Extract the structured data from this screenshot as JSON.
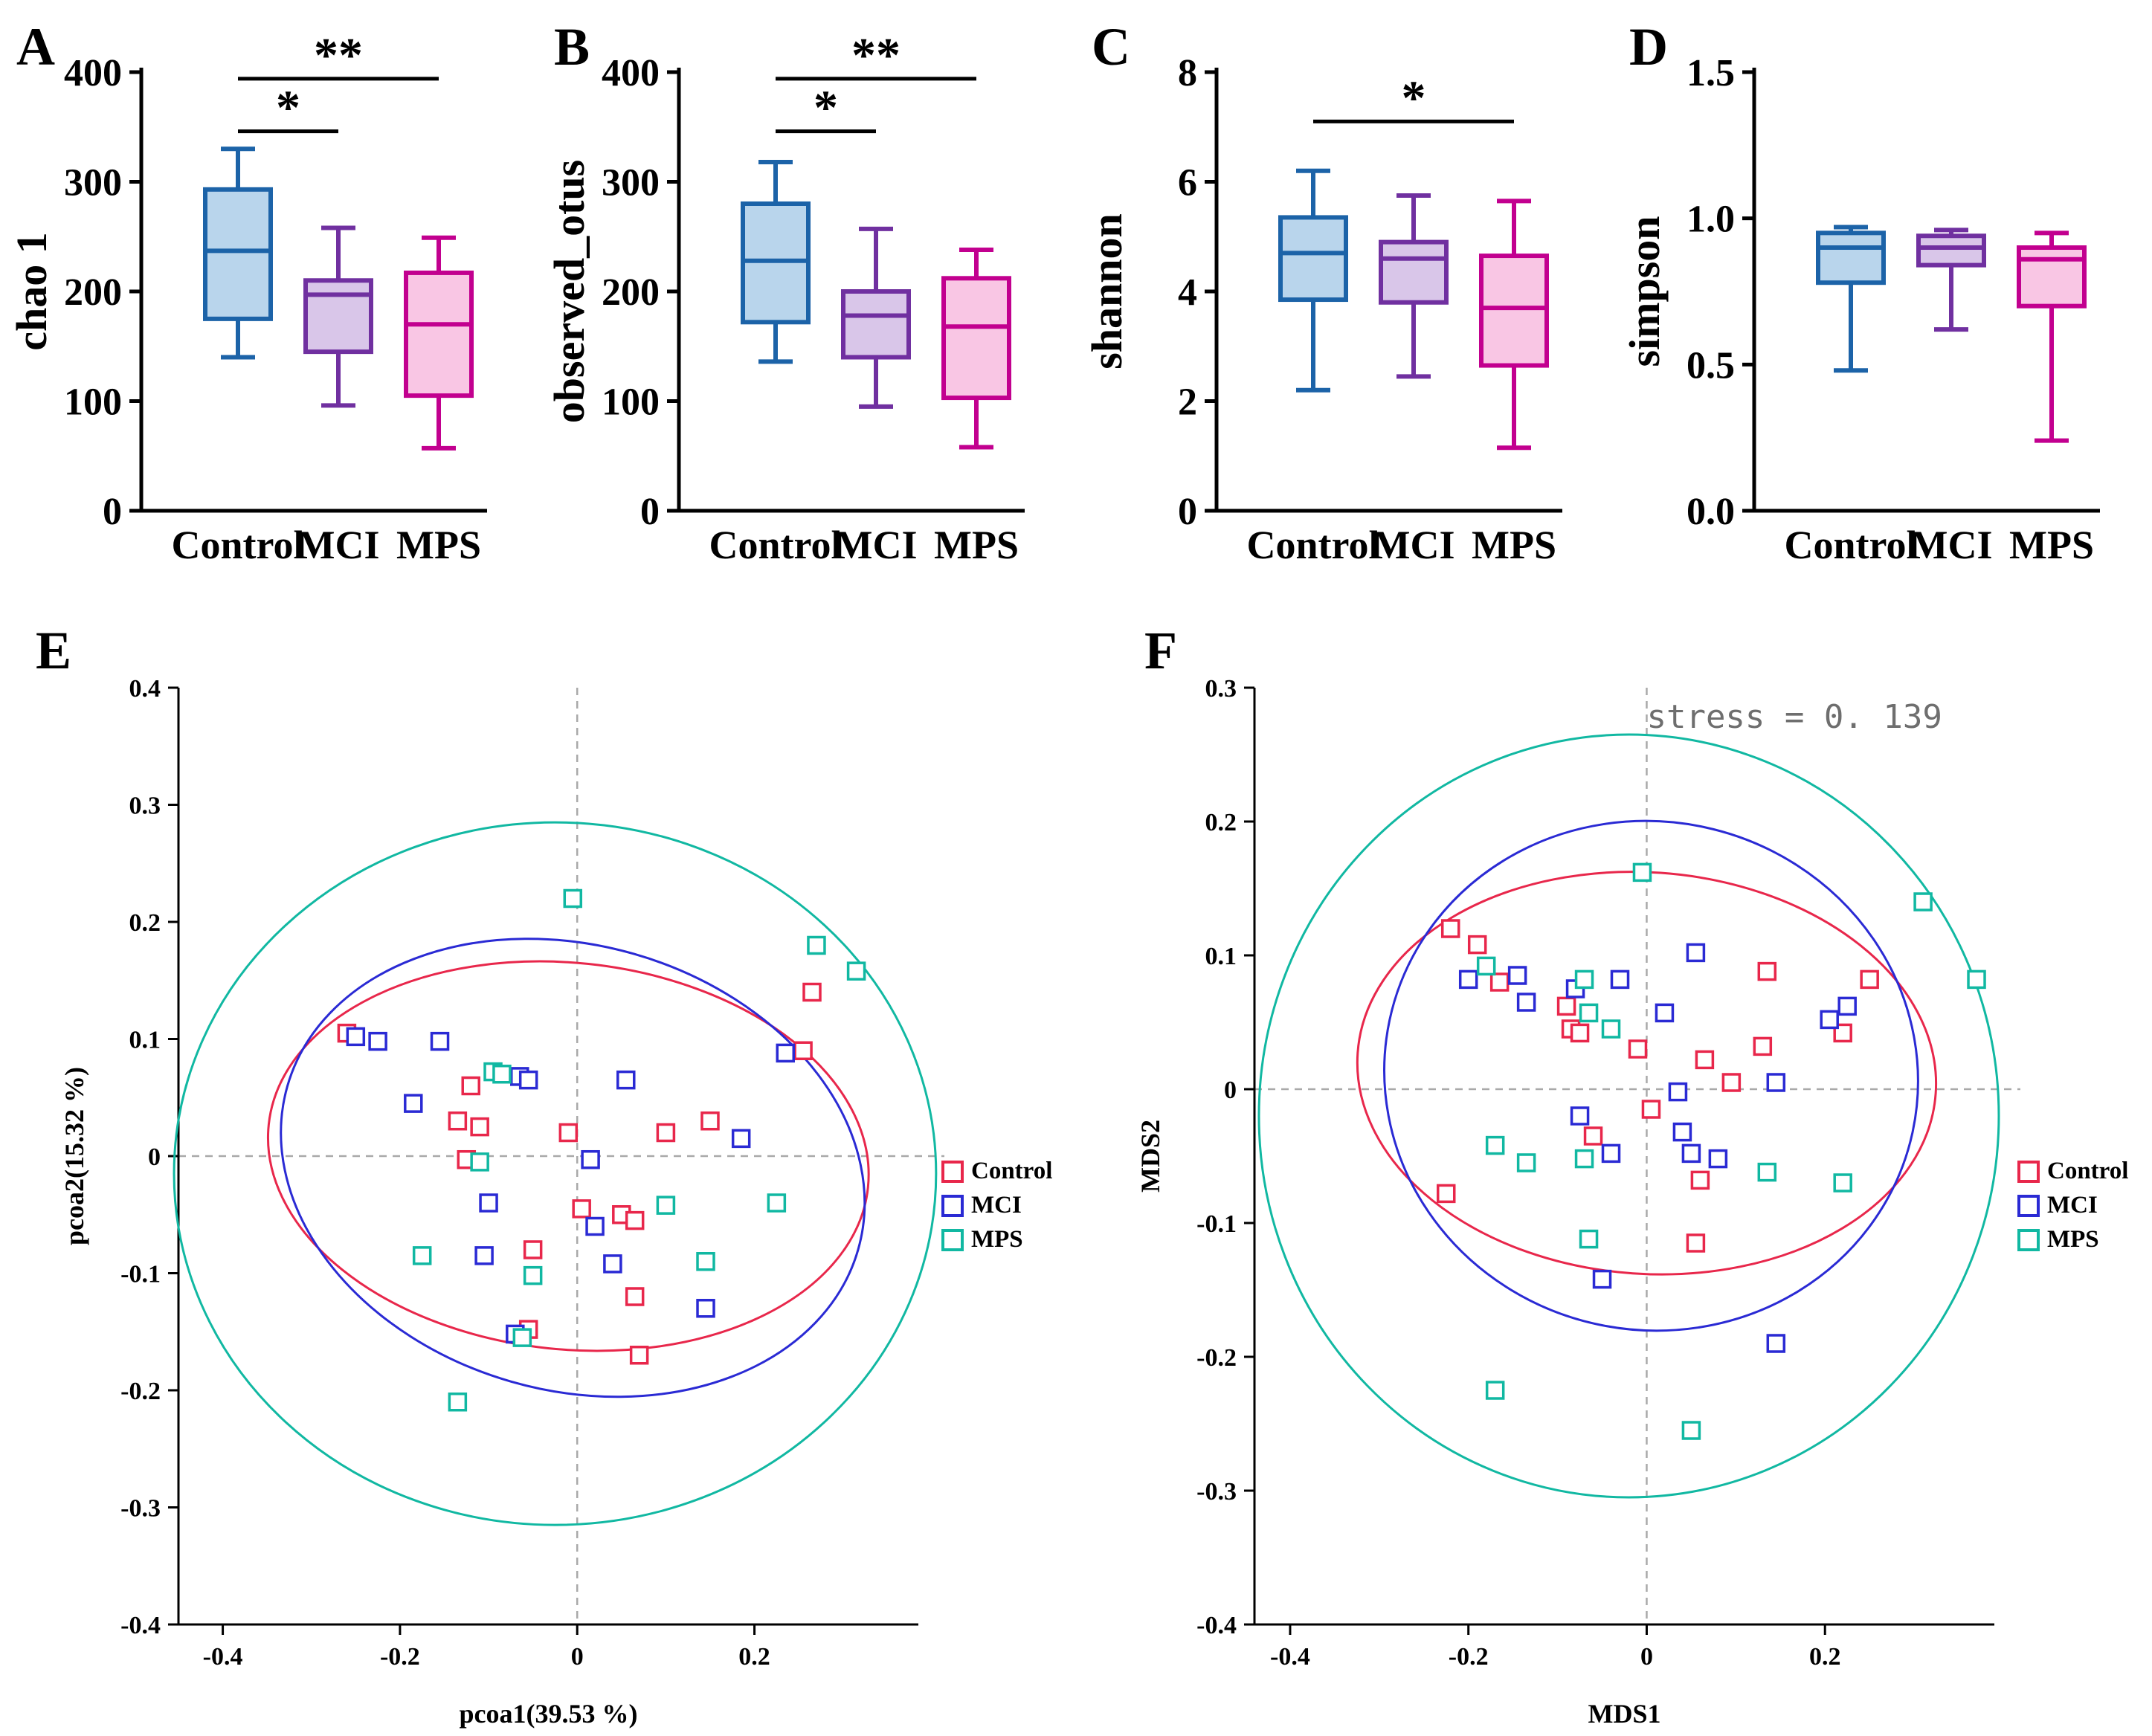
{
  "panels": [
    {
      "letter": "A"
    },
    {
      "letter": "B"
    },
    {
      "letter": "C"
    },
    {
      "letter": "D"
    },
    {
      "letter": "E"
    },
    {
      "letter": "F"
    }
  ],
  "colors": {
    "box_groups": [
      {
        "name": "Control",
        "stroke": "#1c63a8",
        "fill": "#b9d5ec"
      },
      {
        "name": "MCI",
        "stroke": "#7030a0",
        "fill": "#d9c6e9"
      },
      {
        "name": "MPS",
        "stroke": "#c2008f",
        "fill": "#f9c6e4"
      }
    ],
    "scatter_series": {
      "Control": "#e8274b",
      "MCI": "#2a2ad4",
      "MPS": "#11b8a2"
    }
  },
  "chart_data": [
    {
      "type": "box",
      "panel": "A",
      "ylabel": "chao 1",
      "ylim": [
        0,
        400
      ],
      "yticks": [
        "0",
        "100",
        "200",
        "300",
        "400"
      ],
      "categories": [
        "Control",
        "MCI",
        "MPS"
      ],
      "boxes": [
        {
          "group": "Control",
          "whisker_low": 140,
          "q1": 175,
          "median": 237,
          "q3": 293,
          "whisker_high": 330
        },
        {
          "group": "MCI",
          "whisker_low": 96,
          "q1": 145,
          "median": 197,
          "q3": 210,
          "whisker_high": 258
        },
        {
          "group": "MPS",
          "whisker_low": 57,
          "q1": 105,
          "median": 170,
          "q3": 217,
          "whisker_high": 249
        }
      ],
      "significance": [
        {
          "from": 0,
          "to": 1,
          "label": "*",
          "y": 346
        },
        {
          "from": 0,
          "to": 2,
          "label": "**",
          "y": 394
        }
      ]
    },
    {
      "type": "box",
      "panel": "B",
      "ylabel": "observed_otus",
      "ylim": [
        0,
        400
      ],
      "yticks": [
        "0",
        "100",
        "200",
        "300",
        "400"
      ],
      "categories": [
        "Control",
        "MCI",
        "MPS"
      ],
      "boxes": [
        {
          "group": "Control",
          "whisker_low": 136,
          "q1": 172,
          "median": 228,
          "q3": 280,
          "whisker_high": 318
        },
        {
          "group": "MCI",
          "whisker_low": 95,
          "q1": 140,
          "median": 178,
          "q3": 200,
          "whisker_high": 257
        },
        {
          "group": "MPS",
          "whisker_low": 58,
          "q1": 103,
          "median": 168,
          "q3": 212,
          "whisker_high": 238
        }
      ],
      "significance": [
        {
          "from": 0,
          "to": 1,
          "label": "*",
          "y": 346
        },
        {
          "from": 0,
          "to": 2,
          "label": "**",
          "y": 394
        }
      ]
    },
    {
      "type": "box",
      "panel": "C",
      "ylabel": "shannon",
      "ylim": [
        0,
        8
      ],
      "yticks": [
        "0",
        "2",
        "4",
        "6",
        "8"
      ],
      "categories": [
        "Control",
        "MCI",
        "MPS"
      ],
      "boxes": [
        {
          "group": "Control",
          "whisker_low": 2.2,
          "q1": 3.85,
          "median": 4.7,
          "q3": 5.35,
          "whisker_high": 6.2
        },
        {
          "group": "MCI",
          "whisker_low": 2.45,
          "q1": 3.8,
          "median": 4.6,
          "q3": 4.9,
          "whisker_high": 5.75
        },
        {
          "group": "MPS",
          "whisker_low": 1.15,
          "q1": 2.65,
          "median": 3.7,
          "q3": 4.65,
          "whisker_high": 5.65
        }
      ],
      "significance": [
        {
          "from": 0,
          "to": 2,
          "label": "*",
          "y": 7.1
        }
      ]
    },
    {
      "type": "box",
      "panel": "D",
      "ylabel": "simpson",
      "ylim": [
        0,
        1.5
      ],
      "yticks": [
        "0.0",
        "0.5",
        "1.0",
        "1.5"
      ],
      "categories": [
        "Control",
        "MCI",
        "MPS"
      ],
      "boxes": [
        {
          "group": "Control",
          "whisker_low": 0.48,
          "q1": 0.78,
          "median": 0.9,
          "q3": 0.95,
          "whisker_high": 0.97
        },
        {
          "group": "MCI",
          "whisker_low": 0.62,
          "q1": 0.84,
          "median": 0.9,
          "q3": 0.94,
          "whisker_high": 0.96
        },
        {
          "group": "MPS",
          "whisker_low": 0.24,
          "q1": 0.7,
          "median": 0.86,
          "q3": 0.9,
          "whisker_high": 0.95
        }
      ],
      "significance": []
    },
    {
      "type": "scatter",
      "panel": "E",
      "xlabel": "pcoa1(39.53 %)",
      "ylabel": "pcoa2(15.32 %)",
      "xlim": [
        -0.45,
        0.385
      ],
      "ylim": [
        -0.4,
        0.4
      ],
      "xticks": [
        "-0.4",
        "-0.2",
        "0",
        "0.2"
      ],
      "yticks": [
        "0.4",
        "0.3",
        "0.2",
        "0.1",
        "0",
        "-0.1",
        "-0.2",
        "-0.3",
        "-0.4"
      ],
      "legend_y": 755,
      "series": [
        {
          "name": "Control",
          "points": [
            [
              -0.26,
              0.105
            ],
            [
              -0.12,
              0.06
            ],
            [
              -0.135,
              0.03
            ],
            [
              -0.11,
              0.025
            ],
            [
              -0.125,
              -0.003
            ],
            [
              -0.01,
              0.02
            ],
            [
              0.005,
              -0.045
            ],
            [
              0.05,
              -0.05
            ],
            [
              0.065,
              -0.055
            ],
            [
              0.1,
              0.02
            ],
            [
              0.15,
              0.03
            ],
            [
              0.255,
              0.09
            ],
            [
              0.265,
              0.14
            ],
            [
              -0.05,
              -0.08
            ],
            [
              0.065,
              -0.12
            ],
            [
              0.07,
              -0.17
            ],
            [
              -0.055,
              -0.148
            ]
          ]
        },
        {
          "name": "MCI",
          "points": [
            [
              -0.25,
              0.102
            ],
            [
              -0.225,
              0.098
            ],
            [
              -0.155,
              0.098
            ],
            [
              -0.185,
              0.045
            ],
            [
              -0.065,
              0.068
            ],
            [
              -0.055,
              0.065
            ],
            [
              0.055,
              0.065
            ],
            [
              0.015,
              -0.003
            ],
            [
              -0.1,
              -0.04
            ],
            [
              -0.105,
              -0.085
            ],
            [
              0.04,
              -0.092
            ],
            [
              0.185,
              0.015
            ],
            [
              0.235,
              0.088
            ],
            [
              0.145,
              -0.13
            ],
            [
              -0.07,
              -0.152
            ],
            [
              0.02,
              -0.06
            ]
          ]
        },
        {
          "name": "MPS",
          "points": [
            [
              -0.005,
              0.22
            ],
            [
              0.27,
              0.18
            ],
            [
              0.315,
              0.158
            ],
            [
              -0.095,
              0.072
            ],
            [
              -0.11,
              -0.005
            ],
            [
              -0.175,
              -0.085
            ],
            [
              -0.05,
              -0.102
            ],
            [
              0.145,
              -0.09
            ],
            [
              0.225,
              -0.04
            ],
            [
              0.1,
              -0.042
            ],
            [
              -0.135,
              -0.21
            ],
            [
              -0.062,
              -0.155
            ],
            [
              -0.085,
              0.07
            ]
          ]
        }
      ],
      "ellipses": [
        {
          "series": "Control",
          "cx": -0.01,
          "cy": 0.0,
          "rx": 0.34,
          "ry": 0.165,
          "tilt": 6
        },
        {
          "series": "MCI",
          "cx": -0.005,
          "cy": -0.01,
          "rx": 0.335,
          "ry": 0.19,
          "tilt": 16
        },
        {
          "series": "MPS",
          "cx": -0.025,
          "cy": -0.015,
          "rx": 0.43,
          "ry": 0.3,
          "tilt": 0
        }
      ]
    },
    {
      "type": "scatter",
      "panel": "F",
      "xlabel": "MDS1",
      "ylabel": "MDS2",
      "xlim": [
        -0.44,
        0.39
      ],
      "ylim": [
        -0.4,
        0.3
      ],
      "xticks": [
        "-0.4",
        "-0.2",
        "0",
        "0.2"
      ],
      "yticks": [
        "0.3",
        "0.2",
        "0.1",
        "0",
        "-0.1",
        "-0.2",
        "-0.3",
        "-0.4"
      ],
      "legend_y": 755,
      "annotation": {
        "text": "stress = 0. 139",
        "x": 0.0,
        "y": 0.27
      },
      "series": [
        {
          "name": "Control",
          "points": [
            [
              -0.22,
              0.12
            ],
            [
              -0.19,
              0.108
            ],
            [
              -0.165,
              0.08
            ],
            [
              -0.09,
              0.062
            ],
            [
              -0.085,
              0.045
            ],
            [
              -0.075,
              0.042
            ],
            [
              -0.01,
              0.03
            ],
            [
              0.065,
              0.022
            ],
            [
              0.095,
              0.005
            ],
            [
              0.13,
              0.032
            ],
            [
              0.135,
              0.088
            ],
            [
              0.25,
              0.082
            ],
            [
              0.22,
              0.042
            ],
            [
              0.005,
              -0.015
            ],
            [
              0.06,
              -0.068
            ],
            [
              0.055,
              -0.115
            ],
            [
              -0.225,
              -0.078
            ],
            [
              -0.06,
              -0.035
            ]
          ]
        },
        {
          "name": "MCI",
          "points": [
            [
              -0.2,
              0.082
            ],
            [
              -0.145,
              0.085
            ],
            [
              -0.135,
              0.065
            ],
            [
              -0.08,
              0.075
            ],
            [
              -0.03,
              0.082
            ],
            [
              0.055,
              0.102
            ],
            [
              0.02,
              0.057
            ],
            [
              0.145,
              0.005
            ],
            [
              0.205,
              0.052
            ],
            [
              0.225,
              0.062
            ],
            [
              -0.075,
              -0.02
            ],
            [
              -0.04,
              -0.048
            ],
            [
              0.04,
              -0.032
            ],
            [
              0.05,
              -0.048
            ],
            [
              0.08,
              -0.052
            ],
            [
              -0.05,
              -0.142
            ],
            [
              0.145,
              -0.19
            ],
            [
              0.035,
              -0.002
            ]
          ]
        },
        {
          "name": "MPS",
          "points": [
            [
              -0.005,
              0.162
            ],
            [
              0.31,
              0.14
            ],
            [
              0.37,
              0.082
            ],
            [
              -0.18,
              0.092
            ],
            [
              -0.07,
              0.082
            ],
            [
              -0.065,
              0.057
            ],
            [
              -0.04,
              0.045
            ],
            [
              -0.17,
              -0.042
            ],
            [
              -0.135,
              -0.055
            ],
            [
              -0.07,
              -0.052
            ],
            [
              0.135,
              -0.062
            ],
            [
              0.22,
              -0.07
            ],
            [
              -0.065,
              -0.112
            ],
            [
              -0.17,
              -0.225
            ],
            [
              0.05,
              -0.255
            ]
          ]
        }
      ],
      "ellipses": [
        {
          "series": "Control",
          "cx": 0.0,
          "cy": 0.012,
          "rx": 0.325,
          "ry": 0.15,
          "tilt": 4
        },
        {
          "series": "MCI",
          "cx": 0.005,
          "cy": 0.01,
          "rx": 0.3,
          "ry": 0.19,
          "tilt": 12
        },
        {
          "series": "MPS",
          "cx": -0.02,
          "cy": -0.02,
          "rx": 0.415,
          "ry": 0.285,
          "tilt": 0
        }
      ]
    }
  ]
}
